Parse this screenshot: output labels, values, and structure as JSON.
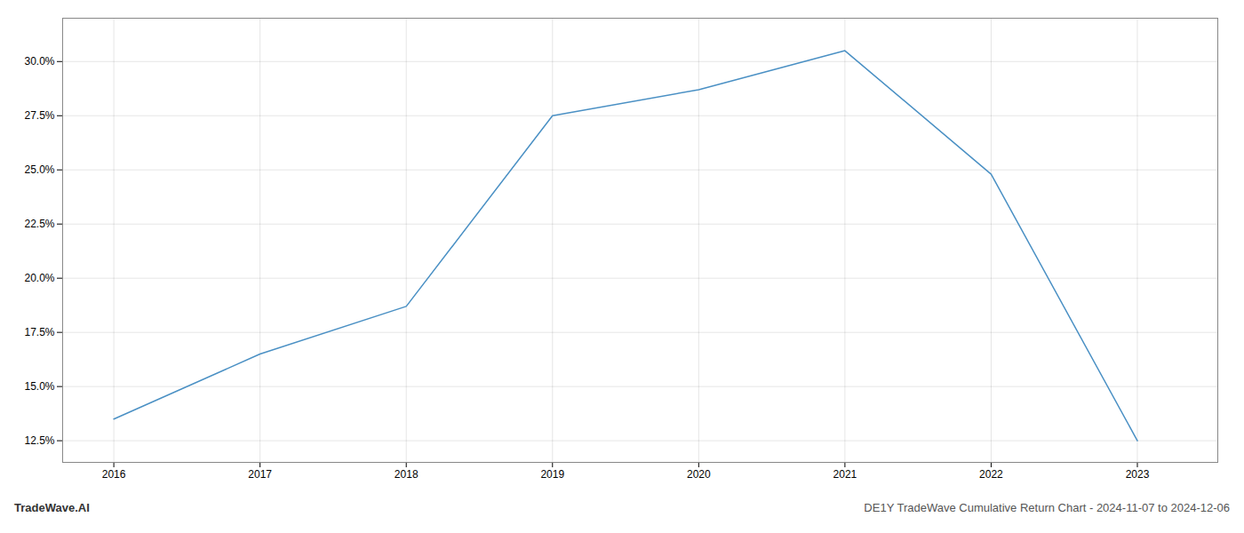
{
  "chart_data": {
    "type": "line",
    "title": "DE1Y TradeWave Cumulative Return Chart - 2024-11-07 to 2024-12-06",
    "annotations": [
      "TradeWave.AI"
    ],
    "x": [
      2016,
      2017,
      2018,
      2019,
      2020,
      2021,
      2022,
      2023
    ],
    "values": [
      13.5,
      16.5,
      18.7,
      27.5,
      28.7,
      30.5,
      24.8,
      12.5
    ],
    "color": "#4a90c4",
    "xlim": [
      2015.65,
      2023.55
    ],
    "xticks": [
      2016,
      2017,
      2018,
      2019,
      2020,
      2021,
      2022,
      2023
    ],
    "ylim": [
      11.5,
      32.0
    ],
    "yticks": [
      {
        "value": 12.5,
        "label": "12.5%"
      },
      {
        "value": 15.0,
        "label": "15.0%"
      },
      {
        "value": 17.5,
        "label": "17.5%"
      },
      {
        "value": 20.0,
        "label": "20.0%"
      },
      {
        "value": 22.5,
        "label": "22.5%"
      },
      {
        "value": 25.0,
        "label": "25.0%"
      },
      {
        "value": 27.5,
        "label": "27.5%"
      },
      {
        "value": 30.0,
        "label": "30.0%"
      }
    ],
    "grid": true
  }
}
